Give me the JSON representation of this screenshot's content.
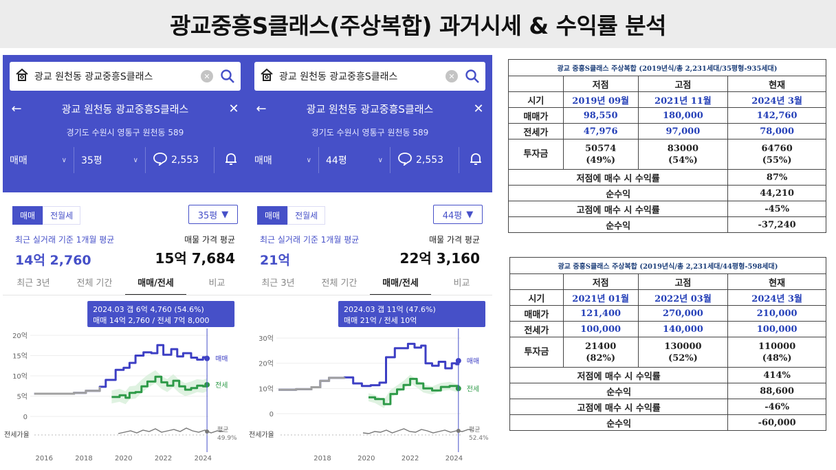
{
  "title": "광교중흥S클래스(주상복합) 과거시세 & 수익률 분석",
  "colors": {
    "app_blue": "#4650c8",
    "line_dark": "#3d3fc4",
    "line_green": "#2e9a48",
    "line_gray": "#a0a0a0"
  },
  "icons": [
    "home-icon",
    "clear-icon",
    "search-icon",
    "back-arrow-icon",
    "close-icon",
    "chevron-down-icon",
    "comment-icon",
    "bell-icon"
  ],
  "panels": [
    {
      "search_text": "광교 원천동 광교중흥S클래스",
      "nav_title": "광교 원천동 광교중흥S클래스",
      "address": "경기도 수원시 영통구 원천동 589",
      "filter_type": "매매",
      "filter_size": "35평",
      "comment_count": "2,553",
      "tab_sale": "매매",
      "tab_rent": "전월세",
      "size_select": "35평",
      "recent_label": "최근 실거래 기준 1개월 평균",
      "recent_value": "14억 2,760",
      "ask_label": "매물 가격 평균",
      "ask_value": "15억 7,684",
      "periods": [
        "최근 3년",
        "전체 기간",
        "매매/전세",
        "비교"
      ],
      "tooltip_line1": "2024.03  갭 6억 4,760 (54.6%)",
      "tooltip_line2": "매매 14억 2,760 / 전세 7억 8,000",
      "ratio_row_label": "전세가율",
      "ratio_label_avg": "평균",
      "ratio_value": "49.9%"
    },
    {
      "search_text": "광교 원천동 광교중흥S클래스",
      "nav_title": "광교 원천동 광교중흥S클래스",
      "address": "경기도 수원시 영통구 원천동 589",
      "filter_type": "매매",
      "filter_size": "44평",
      "comment_count": "2,553",
      "tab_sale": "매매",
      "tab_rent": "전월세",
      "size_select": "44평",
      "recent_label": "최근 실거래 기준 1개월 평균",
      "recent_value": "21억",
      "ask_label": "매물 가격 평균",
      "ask_value": "22억 3,160",
      "periods": [
        "최근 3년",
        "전체 기간",
        "매매/전세",
        "비교"
      ],
      "tooltip_line1": "2024.03  갭 11억 (47.6%)",
      "tooltip_line2": "매매 21억 / 전세 10억",
      "ratio_row_label": "전세가율",
      "ratio_label_avg": "평균",
      "ratio_value": "52.4%"
    }
  ],
  "chart_data": [
    {
      "type": "line",
      "ylabel": "",
      "y_ticks": [
        "20억",
        "15억",
        "10억",
        "5억",
        "0"
      ],
      "ylim": [
        0,
        20
      ],
      "x_ticks": [
        "2016",
        "2018",
        "2020",
        "2022",
        "2024"
      ],
      "series": [
        {
          "name": "매매",
          "x": [
            2015.5,
            2016.5,
            2017.5,
            2018.1,
            2018.8,
            2019.1,
            2019.6,
            2020.0,
            2020.3,
            2020.6,
            2021.0,
            2021.4,
            2021.7,
            2022.0,
            2022.4,
            2022.7,
            2023.0,
            2023.4,
            2023.7,
            2024.0,
            2024.2
          ],
          "values": [
            5.6,
            5.6,
            5.8,
            6.3,
            7.3,
            9.0,
            11.5,
            12.0,
            13.2,
            15.0,
            15.8,
            15.6,
            17.6,
            15.2,
            16.6,
            14.8,
            15.6,
            14.5,
            14.0,
            14.6,
            14.3
          ]
        },
        {
          "name": "전세",
          "x": [
            2019.4,
            2019.8,
            2020.1,
            2020.3,
            2020.6,
            2020.9,
            2021.2,
            2021.6,
            2021.9,
            2022.2,
            2022.5,
            2022.8,
            2023.1,
            2023.4,
            2023.7,
            2024.0,
            2024.2
          ],
          "values": [
            4.8,
            5.2,
            4.6,
            5.8,
            6.0,
            7.4,
            8.6,
            9.8,
            8.4,
            7.6,
            8.8,
            7.4,
            6.6,
            7.0,
            7.6,
            7.4,
            7.8
          ]
        }
      ],
      "markers": [
        {
          "series": "매매",
          "x": 2024.2,
          "value": 14.3
        },
        {
          "series": "전세",
          "x": 2024.2,
          "value": 7.8
        }
      ]
    },
    {
      "type": "line",
      "ylabel": "",
      "y_ticks": [
        "30억",
        "20억",
        "10억",
        "0"
      ],
      "ylim": [
        0,
        30
      ],
      "x_ticks": [
        "2018",
        "2020",
        "2022",
        "2024"
      ],
      "series": [
        {
          "name": "매매",
          "x": [
            2016.0,
            2016.8,
            2017.5,
            2017.9,
            2018.3,
            2019.0,
            2019.4,
            2019.8,
            2020.2,
            2020.6,
            2020.9,
            2021.3,
            2021.6,
            2021.9,
            2022.2,
            2022.5,
            2022.7,
            2023.0,
            2023.3,
            2023.6,
            2023.9,
            2024.1,
            2024.2
          ],
          "values": [
            9.5,
            9.7,
            10.5,
            13.0,
            14.2,
            14.4,
            12.0,
            11.0,
            11.3,
            12.3,
            22.4,
            26.0,
            26.0,
            27.7,
            26.2,
            27.0,
            20.0,
            19.0,
            20.6,
            18.0,
            20.0,
            19.6,
            21.0
          ]
        },
        {
          "name": "전세",
          "x": [
            2020.1,
            2020.4,
            2020.8,
            2021.1,
            2021.4,
            2021.7,
            2022.0,
            2022.3,
            2022.6,
            2023.0,
            2023.4,
            2023.8,
            2024.2
          ],
          "values": [
            6.5,
            5.8,
            3.8,
            7.8,
            9.6,
            11.4,
            13.8,
            12.0,
            10.0,
            9.2,
            10.6,
            11.0,
            10.0
          ]
        }
      ],
      "markers": [
        {
          "series": "매매",
          "x": 2024.2,
          "value": 21.0
        },
        {
          "series": "전세",
          "x": 2024.2,
          "value": 10.0
        }
      ]
    },
    {
      "type": "table",
      "title": "광교 중흥S클래스 주상복합 (2019년식/총 2,231세대/35평형-935세대)",
      "columns": [
        "",
        "저점",
        "고점",
        "현재"
      ],
      "rows": [
        {
          "label": "시기",
          "values": [
            "2019년 09월",
            "2021년 11월",
            "2024년 3월"
          ]
        },
        {
          "label": "매매가",
          "values": [
            "98,550",
            "180,000",
            "142,760"
          ]
        },
        {
          "label": "전세가",
          "values": [
            "47,976",
            "97,000",
            "78,000"
          ]
        },
        {
          "label": "투자금",
          "values": [
            [
              "50574",
              "(49%)"
            ],
            [
              "83000",
              "(54%)"
            ],
            [
              "64760",
              "(55%)"
            ]
          ]
        }
      ],
      "summary": [
        {
          "label": "저점에 매수 시 수익률",
          "value": "87%"
        },
        {
          "label": "순수익",
          "value": "44,210"
        },
        {
          "label": "고점에 매수 시 수익률",
          "value": "-45%"
        },
        {
          "label": "순수익",
          "value": "-37,240"
        }
      ]
    },
    {
      "type": "table",
      "title": "광교 중흥S클래스 주상복합 (2019년식/총 2,231세대/44평형-598세대)",
      "columns": [
        "",
        "저점",
        "고점",
        "현재"
      ],
      "rows": [
        {
          "label": "시기",
          "values": [
            "2021년 01월",
            "2022년 03월",
            "2024년 3월"
          ]
        },
        {
          "label": "매매가",
          "values": [
            "121,400",
            "270,000",
            "210,000"
          ]
        },
        {
          "label": "전세가",
          "values": [
            "100,000",
            "140,000",
            "100,000"
          ]
        },
        {
          "label": "투자금",
          "values": [
            [
              "21400",
              "(82%)"
            ],
            [
              "130000",
              "(52%)"
            ],
            [
              "110000",
              "(48%)"
            ]
          ]
        }
      ],
      "summary": [
        {
          "label": "저점에 매수 시 수익률",
          "value": "414%"
        },
        {
          "label": "순수익",
          "value": "88,600"
        },
        {
          "label": "고점에 매수 시 수익률",
          "value": "-46%"
        },
        {
          "label": "순수익",
          "value": "-60,000"
        }
      ]
    }
  ]
}
